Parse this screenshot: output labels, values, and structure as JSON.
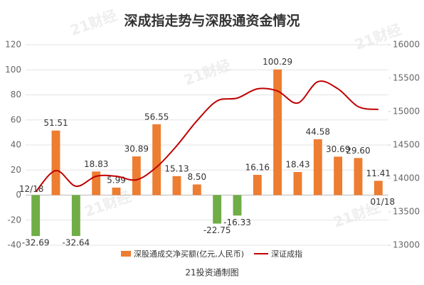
{
  "chart_data": {
    "type": "bar_line",
    "title": "深成指走势与深股通资金情况",
    "watermark": "21财经",
    "source": "21投资通制图",
    "categories": [
      "12/18",
      null,
      null,
      null,
      null,
      null,
      null,
      null,
      null,
      null,
      null,
      null,
      null,
      null,
      null,
      null,
      null,
      "01/18"
    ],
    "series": [
      {
        "name": "深股通成交净买额(亿元,人民币)",
        "type": "bar",
        "color": "#ed7d31",
        "negative_color": "#70ad47",
        "values": [
          -32.69,
          51.51,
          -32.64,
          18.83,
          5.99,
          30.89,
          56.55,
          15.13,
          8.5,
          -22.75,
          -16.33,
          16.16,
          100.29,
          18.43,
          44.58,
          30.69,
          29.6,
          11.41
        ],
        "value_labels": [
          "-32.69",
          "51.51",
          "-32.64",
          "18.83",
          "5.99",
          "30.89",
          "56.55",
          "15.13",
          "8.50",
          "-22.75",
          "-16.33",
          "16.16",
          "100.29",
          "18.43",
          "44.58",
          "30.69",
          "29.60",
          "11.41"
        ]
      },
      {
        "name": "深证成指",
        "type": "line",
        "color": "#c00000",
        "axis": "y2",
        "values": [
          13798,
          14117,
          13883,
          14032,
          14032,
          13979,
          14170,
          14489,
          14862,
          15159,
          15202,
          15340,
          15308,
          15128,
          15447,
          15340,
          15074,
          15032
        ]
      }
    ],
    "ylim": [
      -40,
      120
    ],
    "yticks": [
      -40,
      -20,
      0,
      20,
      40,
      60,
      80,
      100,
      120
    ],
    "y2lim": [
      13000,
      16000
    ],
    "y2ticks": [
      13000,
      13500,
      14000,
      14500,
      15000,
      15500,
      16000
    ],
    "grid": true
  }
}
